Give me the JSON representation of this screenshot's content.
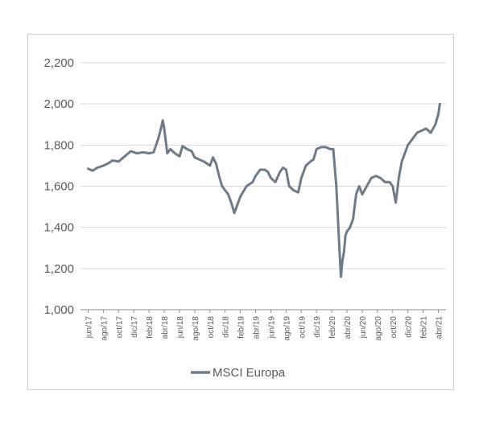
{
  "chart_data": {
    "type": "line",
    "title": "",
    "xlabel": "",
    "ylabel": "",
    "ylim": [
      1000,
      2200
    ],
    "yticks": [
      1000,
      1200,
      1400,
      1600,
      1800,
      2000,
      2200
    ],
    "ytick_labels": [
      "1,000",
      "1,200",
      "1,400",
      "1,600",
      "1,800",
      "2,000",
      "2,200"
    ],
    "xtick_labels": [
      "jun/17",
      "ago/17",
      "oct/17",
      "dic/17",
      "feb/18",
      "abr/18",
      "jun/18",
      "ago/18",
      "oct/18",
      "dic/18",
      "feb/19",
      "abr/19",
      "jun/19",
      "ago/19",
      "oct/19",
      "dic/19",
      "feb/20",
      "abr/20",
      "jun/20",
      "ago/20",
      "oct/20",
      "dic/20",
      "feb/21",
      "abr/21"
    ],
    "grid": "horizontal",
    "legend_position": "bottom-center",
    "series": [
      {
        "name": "MSCI Europa",
        "color": "#6d7b8a",
        "x": [
          0.0,
          0.3,
          0.6,
          1.0,
          1.3,
          1.6,
          2.0,
          2.4,
          2.8,
          3.2,
          3.6,
          4.0,
          4.3,
          4.6,
          4.75,
          4.9,
          5.0,
          5.2,
          5.4,
          5.7,
          6.0,
          6.2,
          6.5,
          6.8,
          7.0,
          7.3,
          7.6,
          8.0,
          8.2,
          8.4,
          8.6,
          8.8,
          9.0,
          9.2,
          9.4,
          9.6,
          10.0,
          10.4,
          10.8,
          11.0,
          11.3,
          11.6,
          11.8,
          12.0,
          12.3,
          12.6,
          12.8,
          13.0,
          13.2,
          13.5,
          13.8,
          14.0,
          14.3,
          14.6,
          14.8,
          15.0,
          15.3,
          15.6,
          15.9,
          16.1,
          16.3,
          16.5,
          16.6,
          16.7,
          16.8,
          16.9,
          17.0,
          17.2,
          17.4,
          17.6,
          17.8,
          18.0,
          18.3,
          18.6,
          18.9,
          19.2,
          19.5,
          19.8,
          20.0,
          20.2,
          20.4,
          20.6,
          20.8,
          21.0,
          21.3,
          21.6,
          21.9,
          22.2,
          22.5,
          22.8,
          23.0,
          23.1
        ],
        "values": [
          1685,
          1675,
          1690,
          1700,
          1710,
          1725,
          1720,
          1745,
          1770,
          1760,
          1765,
          1760,
          1765,
          1830,
          1870,
          1920,
          1880,
          1760,
          1780,
          1760,
          1745,
          1795,
          1780,
          1770,
          1740,
          1730,
          1720,
          1700,
          1740,
          1710,
          1650,
          1600,
          1580,
          1560,
          1520,
          1470,
          1550,
          1600,
          1620,
          1650,
          1680,
          1680,
          1670,
          1640,
          1620,
          1670,
          1690,
          1680,
          1600,
          1580,
          1570,
          1640,
          1700,
          1720,
          1730,
          1780,
          1790,
          1790,
          1780,
          1780,
          1600,
          1300,
          1160,
          1240,
          1280,
          1360,
          1380,
          1400,
          1440,
          1560,
          1600,
          1560,
          1600,
          1640,
          1650,
          1640,
          1620,
          1620,
          1600,
          1520,
          1640,
          1720,
          1760,
          1800,
          1830,
          1860,
          1870,
          1880,
          1860,
          1900,
          1950,
          2000
        ]
      }
    ]
  }
}
